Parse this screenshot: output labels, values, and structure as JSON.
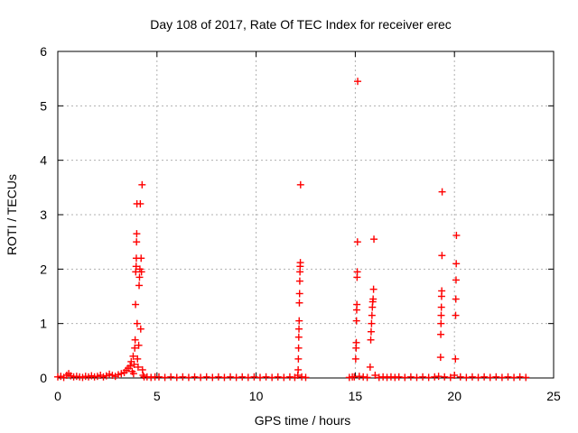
{
  "chart_data": {
    "type": "scatter",
    "title": "Day 108 of 2017, Rate Of TEC Index for receiver erec",
    "xlabel": "GPS time / hours",
    "ylabel": "ROTI / TECUs",
    "xlim": [
      0,
      25
    ],
    "ylim": [
      0,
      6
    ],
    "xticks": [
      "0",
      "5",
      "10",
      "15",
      "20",
      "25"
    ],
    "yticks": [
      "0",
      "1",
      "2",
      "3",
      "4",
      "5",
      "6"
    ],
    "grid": true,
    "marker": "+",
    "color": "#ff0000",
    "series": [
      {
        "points": [
          [
            0.0,
            0.02
          ],
          [
            0.15,
            0.03
          ],
          [
            0.3,
            0.01
          ],
          [
            0.45,
            0.05
          ],
          [
            0.55,
            0.08
          ],
          [
            0.65,
            0.04
          ],
          [
            0.8,
            0.02
          ],
          [
            0.95,
            0.03
          ],
          [
            1.1,
            0.02
          ],
          [
            1.25,
            0.01
          ],
          [
            1.4,
            0.03
          ],
          [
            1.55,
            0.02
          ],
          [
            1.7,
            0.04
          ],
          [
            1.85,
            0.02
          ],
          [
            2.0,
            0.03
          ],
          [
            2.15,
            0.05
          ],
          [
            2.3,
            0.02
          ],
          [
            2.45,
            0.04
          ],
          [
            2.6,
            0.07
          ],
          [
            2.75,
            0.05
          ],
          [
            2.9,
            0.03
          ],
          [
            3.05,
            0.06
          ],
          [
            3.2,
            0.08
          ],
          [
            3.35,
            0.1
          ],
          [
            3.45,
            0.14
          ],
          [
            3.55,
            0.18
          ],
          [
            3.65,
            0.22
          ],
          [
            3.7,
            0.3
          ],
          [
            3.75,
            0.12
          ],
          [
            3.8,
            0.4
          ],
          [
            3.82,
            0.08
          ],
          [
            3.85,
            0.25
          ],
          [
            3.88,
            0.55
          ],
          [
            3.9,
            0.7
          ],
          [
            3.92,
            1.35
          ],
          [
            3.93,
            1.95
          ],
          [
            3.95,
            2.05
          ],
          [
            3.96,
            2.2
          ],
          [
            3.97,
            2.5
          ],
          [
            3.98,
            2.65
          ],
          [
            3.99,
            3.2
          ],
          [
            4.0,
            1.0
          ],
          [
            4.02,
            0.35
          ],
          [
            4.05,
            0.2
          ],
          [
            4.08,
            0.6
          ],
          [
            4.1,
            1.7
          ],
          [
            4.12,
            1.85
          ],
          [
            4.14,
            2.0
          ],
          [
            4.16,
            3.2
          ],
          [
            4.18,
            0.9
          ],
          [
            4.2,
            2.2
          ],
          [
            4.22,
            1.95
          ],
          [
            4.25,
            3.55
          ],
          [
            4.27,
            0.15
          ],
          [
            4.3,
            0.05
          ],
          [
            4.35,
            0.02
          ],
          [
            4.5,
            0.02
          ],
          [
            4.7,
            0.01
          ],
          [
            4.9,
            0.02
          ],
          [
            5.1,
            0.02
          ],
          [
            5.4,
            0.01
          ],
          [
            5.7,
            0.02
          ],
          [
            6.0,
            0.01
          ],
          [
            6.3,
            0.02
          ],
          [
            6.6,
            0.01
          ],
          [
            6.9,
            0.02
          ],
          [
            7.2,
            0.01
          ],
          [
            7.5,
            0.02
          ],
          [
            7.8,
            0.01
          ],
          [
            8.1,
            0.02
          ],
          [
            8.4,
            0.01
          ],
          [
            8.7,
            0.02
          ],
          [
            9.0,
            0.01
          ],
          [
            9.3,
            0.02
          ],
          [
            9.6,
            0.01
          ],
          [
            9.9,
            0.02
          ],
          [
            10.2,
            0.01
          ],
          [
            10.5,
            0.02
          ],
          [
            10.8,
            0.01
          ],
          [
            11.1,
            0.02
          ],
          [
            11.4,
            0.01
          ],
          [
            11.7,
            0.02
          ],
          [
            11.95,
            0.01
          ],
          [
            12.1,
            0.05
          ],
          [
            12.12,
            0.15
          ],
          [
            12.13,
            0.35
          ],
          [
            12.14,
            0.55
          ],
          [
            12.15,
            0.75
          ],
          [
            12.16,
            0.9
          ],
          [
            12.17,
            1.05
          ],
          [
            12.18,
            1.38
          ],
          [
            12.19,
            1.55
          ],
          [
            12.2,
            1.78
          ],
          [
            12.21,
            1.95
          ],
          [
            12.22,
            2.05
          ],
          [
            12.23,
            2.12
          ],
          [
            12.24,
            3.55
          ],
          [
            12.3,
            0.02
          ],
          [
            12.5,
            0.01
          ],
          [
            14.7,
            0.01
          ],
          [
            14.85,
            0.02
          ],
          [
            14.95,
            0.02
          ],
          [
            15.02,
            0.35
          ],
          [
            15.04,
            0.55
          ],
          [
            15.05,
            0.65
          ],
          [
            15.06,
            1.05
          ],
          [
            15.07,
            1.25
          ],
          [
            15.08,
            1.35
          ],
          [
            15.09,
            1.85
          ],
          [
            15.1,
            1.95
          ],
          [
            15.11,
            2.5
          ],
          [
            15.12,
            5.45
          ],
          [
            15.2,
            0.03
          ],
          [
            15.4,
            0.02
          ],
          [
            15.6,
            0.01
          ],
          [
            15.75,
            0.2
          ],
          [
            15.78,
            0.7
          ],
          [
            15.8,
            0.85
          ],
          [
            15.82,
            1.0
          ],
          [
            15.84,
            1.15
          ],
          [
            15.86,
            1.3
          ],
          [
            15.88,
            1.4
          ],
          [
            15.9,
            1.45
          ],
          [
            15.92,
            1.63
          ],
          [
            15.94,
            2.55
          ],
          [
            16.0,
            0.05
          ],
          [
            16.2,
            0.01
          ],
          [
            16.4,
            0.02
          ],
          [
            16.6,
            0.01
          ],
          [
            16.8,
            0.02
          ],
          [
            17.0,
            0.01
          ],
          [
            17.2,
            0.02
          ],
          [
            17.5,
            0.01
          ],
          [
            17.8,
            0.02
          ],
          [
            18.1,
            0.01
          ],
          [
            18.4,
            0.02
          ],
          [
            18.7,
            0.01
          ],
          [
            19.0,
            0.02
          ],
          [
            19.2,
            0.03
          ],
          [
            19.3,
            0.38
          ],
          [
            19.31,
            0.8
          ],
          [
            19.32,
            1.0
          ],
          [
            19.33,
            1.15
          ],
          [
            19.34,
            1.3
          ],
          [
            19.35,
            1.5
          ],
          [
            19.36,
            1.6
          ],
          [
            19.37,
            2.25
          ],
          [
            19.38,
            3.42
          ],
          [
            19.5,
            0.02
          ],
          [
            19.8,
            0.01
          ],
          [
            20.0,
            0.05
          ],
          [
            20.05,
            0.35
          ],
          [
            20.06,
            1.15
          ],
          [
            20.07,
            1.45
          ],
          [
            20.08,
            1.8
          ],
          [
            20.09,
            2.1
          ],
          [
            20.1,
            2.62
          ],
          [
            20.3,
            0.02
          ],
          [
            20.6,
            0.01
          ],
          [
            20.9,
            0.02
          ],
          [
            21.2,
            0.01
          ],
          [
            21.5,
            0.02
          ],
          [
            21.8,
            0.01
          ],
          [
            22.1,
            0.02
          ],
          [
            22.4,
            0.01
          ],
          [
            22.7,
            0.02
          ],
          [
            23.0,
            0.01
          ],
          [
            23.3,
            0.02
          ],
          [
            23.6,
            0.01
          ]
        ]
      }
    ]
  }
}
